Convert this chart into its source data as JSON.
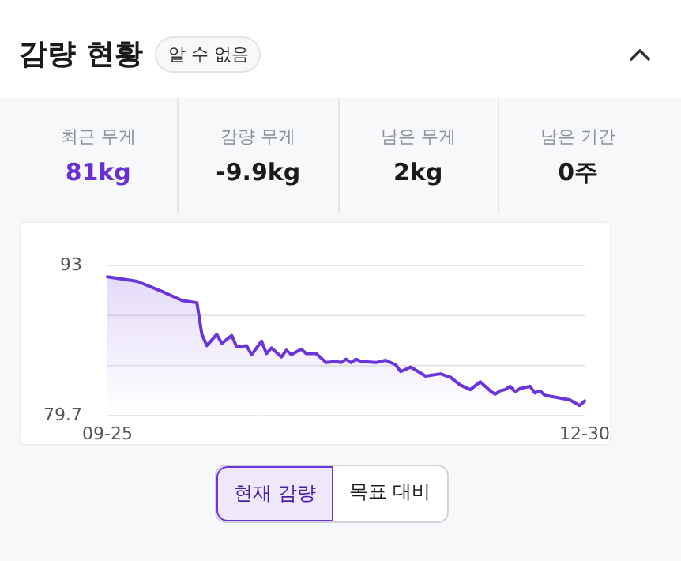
{
  "chart_data": {
    "type": "area",
    "title": "감량 현황",
    "annotations": [
      "알 수 없음",
      "최근 무게",
      "81kg",
      "감량 무게",
      "-9.9kg",
      "남은 무게",
      "2kg",
      "남은 기간",
      "0주",
      "현재 감량",
      "목표 대비"
    ],
    "x": [
      "--09-25",
      "--10-01",
      "--10-06",
      "--10-10",
      "--10-13",
      "--10-14",
      "--10-15",
      "--10-17",
      "--10-18",
      "--10-20",
      "--10-21",
      "--10-23",
      "--10-24",
      "--10-26",
      "--10-27",
      "--10-28",
      "--10-30",
      "--10-31",
      "--11-01",
      "--11-03",
      "--11-04",
      "--11-06",
      "--11-08",
      "--11-10",
      "--11-11",
      "--11-12",
      "--11-13",
      "--11-14",
      "--11-15",
      "--11-18",
      "--11-20",
      "--11-22",
      "--11-23",
      "--11-25",
      "--11-28",
      "--12-01",
      "--12-03",
      "--12-05",
      "--12-07",
      "--12-09",
      "--12-11",
      "--12-12",
      "--12-13",
      "--12-14",
      "--12-15",
      "--12-16",
      "--12-17",
      "--12-19",
      "--12-20",
      "--12-21",
      "--12-22",
      "--12-27",
      "--12-29",
      "--12-30"
    ],
    "series": [
      {
        "color": "#6a35d9",
        "values": [
          92.0,
          91.6,
          90.7,
          89.9,
          89.7,
          86.9,
          85.9,
          86.9,
          86.1,
          86.8,
          85.8,
          85.9,
          85.1,
          86.3,
          85.2,
          85.7,
          84.9,
          85.5,
          85.1,
          85.6,
          85.2,
          85.2,
          84.4,
          84.5,
          84.4,
          84.7,
          84.4,
          84.7,
          84.5,
          84.4,
          84.6,
          84.2,
          83.6,
          84.0,
          83.2,
          83.4,
          83.1,
          82.4,
          82.0,
          82.7,
          81.9,
          81.6,
          81.9,
          82.0,
          82.3,
          81.8,
          82.1,
          82.3,
          81.7,
          81.9,
          81.5,
          81.1,
          80.6,
          81.0
        ]
      }
    ],
    "xlim": [
      "--09-25",
      "--12-30"
    ],
    "xticks": [
      {
        "value": "--09-25",
        "label": "09-25"
      },
      {
        "value": "--12-30",
        "label": "12-30"
      }
    ],
    "ylim": [
      79.7,
      93
    ],
    "yticks": [
      93,
      {
        "value": 88.57,
        "label": null
      },
      {
        "value": 84.13,
        "label": null
      },
      79.7
    ],
    "grid": "y"
  }
}
